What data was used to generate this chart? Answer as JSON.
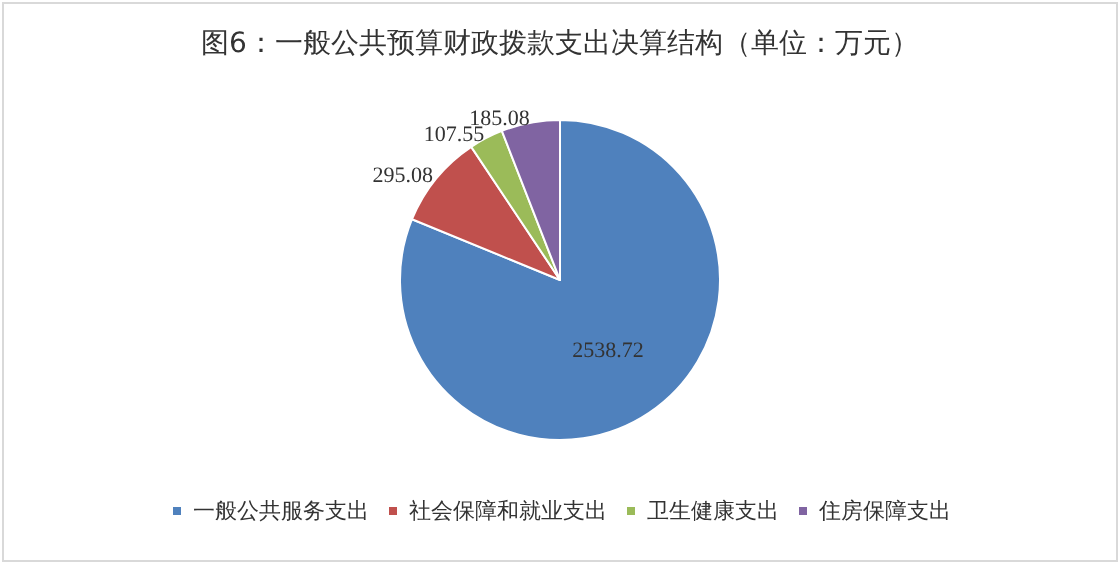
{
  "chart_data": {
    "type": "pie",
    "title": "图6：一般公共预算财政拨款支出决算结构（单位：万元）",
    "categories": [
      "一般公共服务支出",
      "社会保障和就业支出",
      "卫生健康支出",
      "住房保障支出"
    ],
    "values": [
      2538.72,
      295.08,
      107.55,
      185.08
    ],
    "colors": [
      "#4f81bd",
      "#c0504d",
      "#9bbb59",
      "#8064a2"
    ],
    "data_labels": true,
    "legend": "bottom"
  }
}
